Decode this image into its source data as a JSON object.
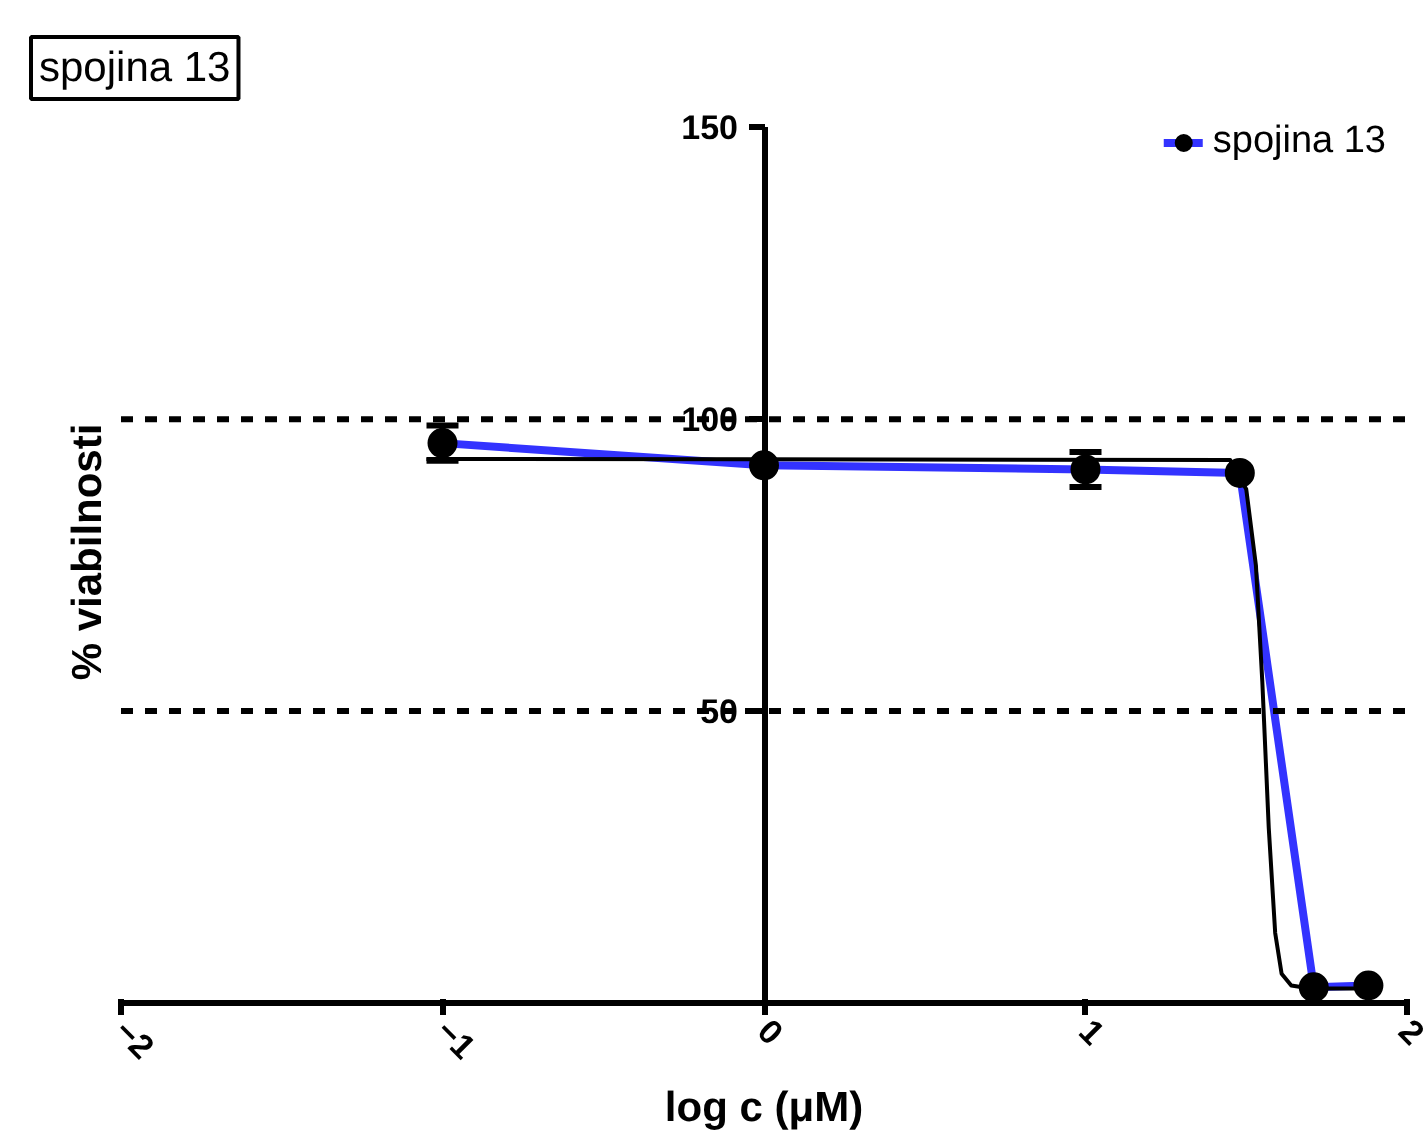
{
  "chart_data": {
    "type": "line",
    "xlabel": "log c (μM)",
    "ylabel": "% viabilnosti",
    "annotations": [
      "spojina 13"
    ],
    "xlim": [
      -2,
      2
    ],
    "ylim": [
      0,
      150
    ],
    "xticks": [
      -2,
      -1,
      0,
      1,
      2
    ],
    "yticks": [
      50,
      100,
      150
    ],
    "series": [
      {
        "name": "spojina 13",
        "color": "#3333ff",
        "marker": "circle",
        "x": [
          -1,
          0,
          1,
          1.48,
          1.71,
          1.88
        ],
        "values": [
          95.9,
          92.1,
          91.4,
          90.8,
          2.7,
          3.0
        ],
        "errors": [
          3,
          null,
          3,
          null,
          null,
          null
        ]
      },
      {
        "type": "line",
        "color": "#000000",
        "marker": "none",
        "x": [
          -1.05,
          1.45,
          1.5,
          1.53,
          1.55,
          1.57,
          1.59,
          1.61,
          1.64,
          1.7,
          1.9
        ],
        "values": [
          93.2,
          93.0,
          88,
          75,
          55,
          30,
          12,
          5,
          3,
          2.5,
          2.5
        ]
      }
    ],
    "ref_lines": [
      {
        "axis": "y",
        "value": 100,
        "line_style": "dashed",
        "color": "#000000"
      },
      {
        "axis": "y",
        "value": 50,
        "line_style": "dashed",
        "color": "#000000"
      }
    ],
    "legend": "top right",
    "grid": false
  }
}
